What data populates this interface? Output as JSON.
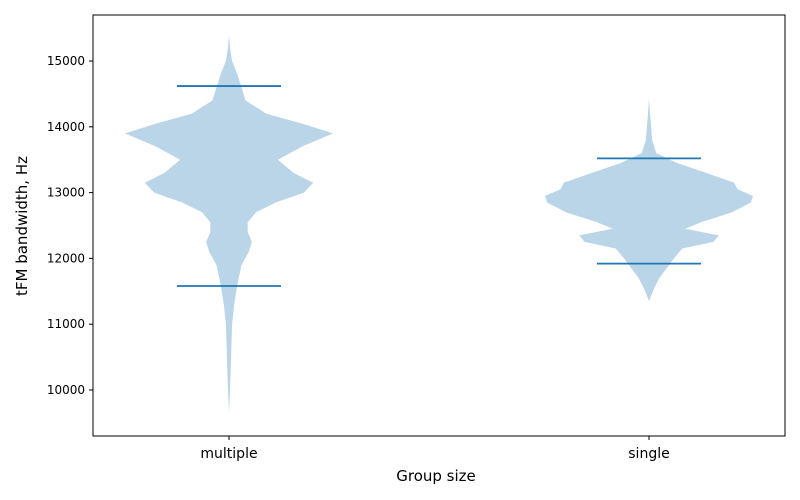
{
  "chart_data": {
    "type": "violin",
    "title": "",
    "xlabel": "Group size",
    "ylabel": "tFM bandwidth, Hz",
    "categories": [
      "multiple",
      "single"
    ],
    "ylim": [
      9300,
      15700
    ],
    "yticks": [
      10000,
      11000,
      12000,
      13000,
      14000,
      15000
    ],
    "ytick_labels": [
      "10000",
      "11000",
      "12000",
      "13000",
      "14000",
      "15000"
    ],
    "grid": false,
    "violins": [
      {
        "category": "multiple",
        "min": 9650,
        "max": 15400,
        "whisker_low": 11580,
        "whisker_high": 14620,
        "density_profile": [
          [
            9650,
            0.0
          ],
          [
            10000,
            0.01
          ],
          [
            10500,
            0.02
          ],
          [
            11000,
            0.03
          ],
          [
            11300,
            0.05
          ],
          [
            11600,
            0.08
          ],
          [
            11900,
            0.12
          ],
          [
            12100,
            0.19
          ],
          [
            12250,
            0.22
          ],
          [
            12400,
            0.18
          ],
          [
            12550,
            0.18
          ],
          [
            12700,
            0.26
          ],
          [
            12850,
            0.45
          ],
          [
            13000,
            0.72
          ],
          [
            13150,
            0.81
          ],
          [
            13300,
            0.62
          ],
          [
            13500,
            0.47
          ],
          [
            13700,
            0.7
          ],
          [
            13900,
            1.0
          ],
          [
            14050,
            0.7
          ],
          [
            14200,
            0.36
          ],
          [
            14400,
            0.16
          ],
          [
            14600,
            0.12
          ],
          [
            14800,
            0.08
          ],
          [
            15000,
            0.03
          ],
          [
            15200,
            0.01
          ],
          [
            15400,
            0.0
          ]
        ]
      },
      {
        "category": "single",
        "min": 11350,
        "max": 14430,
        "whisker_low": 11920,
        "whisker_high": 13520,
        "density_profile": [
          [
            11350,
            0.0
          ],
          [
            11550,
            0.05
          ],
          [
            11700,
            0.1
          ],
          [
            11850,
            0.17
          ],
          [
            12000,
            0.24
          ],
          [
            12150,
            0.32
          ],
          [
            12250,
            0.62
          ],
          [
            12350,
            0.67
          ],
          [
            12450,
            0.35
          ],
          [
            12550,
            0.5
          ],
          [
            12700,
            0.8
          ],
          [
            12850,
            0.98
          ],
          [
            12950,
            1.0
          ],
          [
            13050,
            0.85
          ],
          [
            13150,
            0.82
          ],
          [
            13300,
            0.55
          ],
          [
            13450,
            0.27
          ],
          [
            13600,
            0.07
          ],
          [
            13800,
            0.03
          ],
          [
            14000,
            0.02
          ],
          [
            14200,
            0.01
          ],
          [
            14430,
            0.0
          ]
        ]
      }
    ],
    "colors": {
      "body": "#bad5e8",
      "lines": "#1f77b4",
      "axis": "#000000"
    }
  }
}
